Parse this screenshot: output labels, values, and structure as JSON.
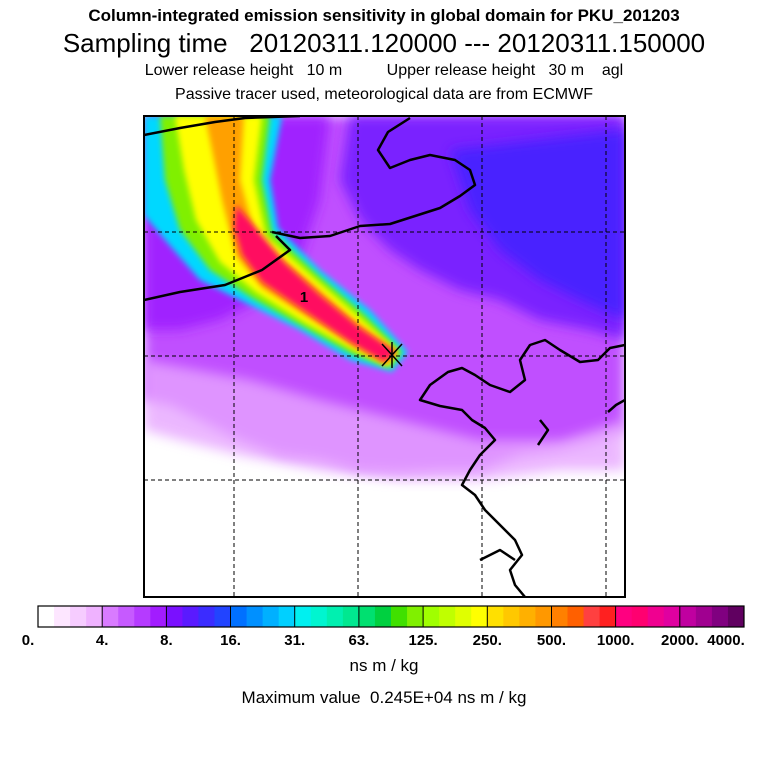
{
  "header": {
    "title": "Column-integrated emission sensitivity in global domain for PKU_201203",
    "sampling": "Sampling time   20120311.120000 --- 20120311.150000",
    "release": "Lower release height   10 m          Upper release height   30 m    agl",
    "note": "Passive tracer used, meteorological data are from ECMWF"
  },
  "map": {
    "marker_label": "1",
    "background_color": "#ffffff",
    "low_color": "#b040ff",
    "plume_colors": [
      "#00e5e5",
      "#ffff00",
      "#ffa500",
      "#ff0066",
      "#ff0040"
    ]
  },
  "colorbar": {
    "tick_labels": [
      "0.",
      "4.",
      "8.",
      "16.",
      "31.",
      "63.",
      "125.",
      "250.",
      "500.",
      "1000.",
      "2000.",
      "4000."
    ],
    "colors": [
      "#ffffff",
      "#fde6ff",
      "#f6ccff",
      "#efb2ff",
      "#d97bff",
      "#c65aff",
      "#b53bff",
      "#a21cff",
      "#7a10ff",
      "#5a1aff",
      "#3b2cff",
      "#2244ff",
      "#0070ff",
      "#0090ff",
      "#00b0ff",
      "#00d0ff",
      "#00f0f0",
      "#00f5d0",
      "#00f0b0",
      "#00e890",
      "#00e070",
      "#00d040",
      "#40e000",
      "#80f000",
      "#a0ff00",
      "#c0ff00",
      "#e0ff00",
      "#ffff00",
      "#ffe000",
      "#ffc800",
      "#ffb000",
      "#ff9800",
      "#ff8000",
      "#ff6000",
      "#ff4040",
      "#ff2020",
      "#ff0080",
      "#ff0070",
      "#f00090",
      "#e000a0",
      "#c000a0",
      "#a00090",
      "#800080",
      "#600060"
    ],
    "unit": "ns m / kg"
  },
  "footer": {
    "max_value": "Maximum value  0.245E+04 ns m / kg"
  }
}
